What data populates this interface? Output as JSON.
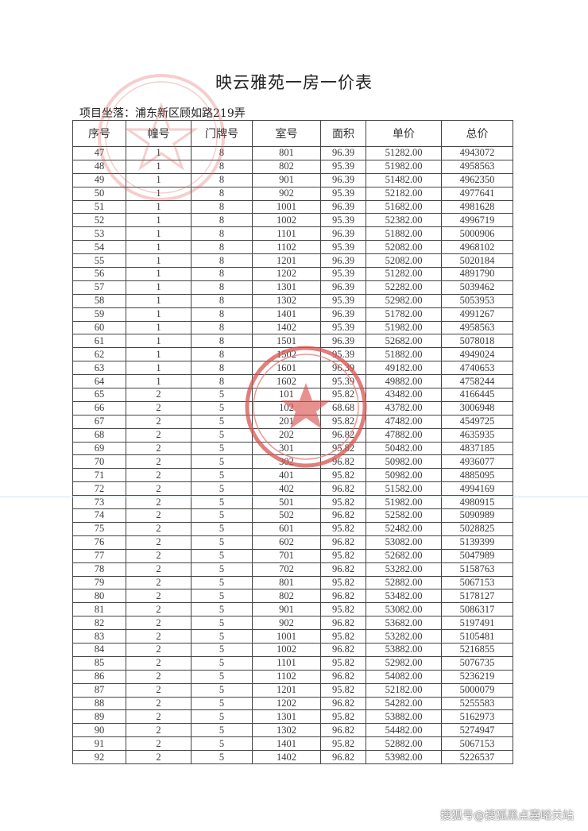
{
  "document": {
    "title": "映云雅苑一房一价表",
    "location": "项目坐落：浦东新区顾如路219弄",
    "watermark": "搜狐号@搜狐黑点嘉峪关站",
    "stamp_color": "#d9534f"
  },
  "table": {
    "headers": [
      "序号",
      "幢号",
      "门牌号",
      "室号",
      "面积",
      "单价",
      "总价"
    ],
    "rows": [
      [
        "47",
        "1",
        "8",
        "801",
        "96.39",
        "51282.00",
        "4943072"
      ],
      [
        "48",
        "1",
        "8",
        "802",
        "95.39",
        "51982.00",
        "4958563"
      ],
      [
        "49",
        "1",
        "8",
        "901",
        "96.39",
        "51482.00",
        "4962350"
      ],
      [
        "50",
        "1",
        "8",
        "902",
        "95.39",
        "52182.00",
        "4977641"
      ],
      [
        "51",
        "1",
        "8",
        "1001",
        "96.39",
        "51682.00",
        "4981628"
      ],
      [
        "52",
        "1",
        "8",
        "1002",
        "95.39",
        "52382.00",
        "4996719"
      ],
      [
        "53",
        "1",
        "8",
        "1101",
        "96.39",
        "51882.00",
        "5000906"
      ],
      [
        "54",
        "1",
        "8",
        "1102",
        "95.39",
        "52082.00",
        "4968102"
      ],
      [
        "55",
        "1",
        "8",
        "1201",
        "96.39",
        "52082.00",
        "5020184"
      ],
      [
        "56",
        "1",
        "8",
        "1202",
        "95.39",
        "51282.00",
        "4891790"
      ],
      [
        "57",
        "1",
        "8",
        "1301",
        "96.39",
        "52282.00",
        "5039462"
      ],
      [
        "58",
        "1",
        "8",
        "1302",
        "95.39",
        "52982.00",
        "5053953"
      ],
      [
        "59",
        "1",
        "8",
        "1401",
        "96.39",
        "51782.00",
        "4991267"
      ],
      [
        "60",
        "1",
        "8",
        "1402",
        "95.39",
        "51982.00",
        "4958563"
      ],
      [
        "61",
        "1",
        "8",
        "1501",
        "96.39",
        "52682.00",
        "5078018"
      ],
      [
        "62",
        "1",
        "8",
        "1502",
        "95.39",
        "51882.00",
        "4949024"
      ],
      [
        "63",
        "1",
        "8",
        "1601",
        "96.39",
        "49182.00",
        "4740653"
      ],
      [
        "64",
        "1",
        "8",
        "1602",
        "95.39",
        "49882.00",
        "4758244"
      ],
      [
        "65",
        "2",
        "5",
        "101",
        "95.82",
        "43482.00",
        "4166445"
      ],
      [
        "66",
        "2",
        "5",
        "102",
        "68.68",
        "43782.00",
        "3006948"
      ],
      [
        "67",
        "2",
        "5",
        "201",
        "95.82",
        "47482.00",
        "4549725"
      ],
      [
        "68",
        "2",
        "5",
        "202",
        "96.82",
        "47882.00",
        "4635935"
      ],
      [
        "69",
        "2",
        "5",
        "301",
        "95.82",
        "50482.00",
        "4837185"
      ],
      [
        "70",
        "2",
        "5",
        "302",
        "96.82",
        "50982.00",
        "4936077"
      ],
      [
        "71",
        "2",
        "5",
        "401",
        "95.82",
        "50982.00",
        "4885095"
      ],
      [
        "72",
        "2",
        "5",
        "402",
        "96.82",
        "51582.00",
        "4994169"
      ],
      [
        "73",
        "2",
        "5",
        "501",
        "95.82",
        "51982.00",
        "4980915"
      ],
      [
        "74",
        "2",
        "5",
        "502",
        "96.82",
        "52582.00",
        "5090989"
      ],
      [
        "75",
        "2",
        "5",
        "601",
        "95.82",
        "52482.00",
        "5028825"
      ],
      [
        "76",
        "2",
        "5",
        "602",
        "96.82",
        "53082.00",
        "5139399"
      ],
      [
        "77",
        "2",
        "5",
        "701",
        "95.82",
        "52682.00",
        "5047989"
      ],
      [
        "78",
        "2",
        "5",
        "702",
        "96.82",
        "53282.00",
        "5158763"
      ],
      [
        "79",
        "2",
        "5",
        "801",
        "95.82",
        "52882.00",
        "5067153"
      ],
      [
        "80",
        "2",
        "5",
        "802",
        "96.82",
        "53482.00",
        "5178127"
      ],
      [
        "81",
        "2",
        "5",
        "901",
        "95.82",
        "53082.00",
        "5086317"
      ],
      [
        "82",
        "2",
        "5",
        "902",
        "96.82",
        "53682.00",
        "5197491"
      ],
      [
        "83",
        "2",
        "5",
        "1001",
        "95.82",
        "53282.00",
        "5105481"
      ],
      [
        "84",
        "2",
        "5",
        "1002",
        "96.82",
        "53882.00",
        "5216855"
      ],
      [
        "85",
        "2",
        "5",
        "1101",
        "95.82",
        "52982.00",
        "5076735"
      ],
      [
        "86",
        "2",
        "5",
        "1102",
        "96.82",
        "54082.00",
        "5236219"
      ],
      [
        "87",
        "2",
        "5",
        "1201",
        "95.82",
        "52182.00",
        "5000079"
      ],
      [
        "88",
        "2",
        "5",
        "1202",
        "96.82",
        "54282.00",
        "5255583"
      ],
      [
        "89",
        "2",
        "5",
        "1301",
        "95.82",
        "53882.00",
        "5162973"
      ],
      [
        "90",
        "2",
        "5",
        "1302",
        "96.82",
        "54482.00",
        "5274947"
      ],
      [
        "91",
        "2",
        "5",
        "1401",
        "95.82",
        "52882.00",
        "5067153"
      ],
      [
        "92",
        "2",
        "5",
        "1402",
        "96.82",
        "53982.00",
        "5226537"
      ]
    ]
  }
}
